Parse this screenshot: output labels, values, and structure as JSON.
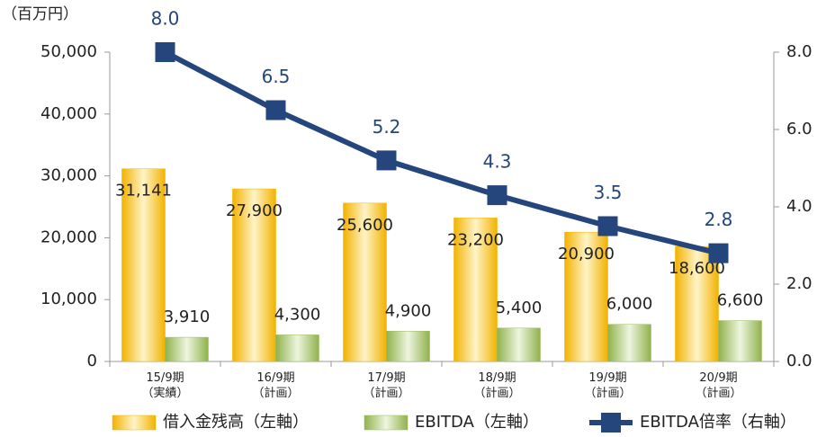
{
  "chart_data": {
    "type": "bar",
    "y_label": "（百万円）",
    "categories": [
      [
        "15/9期",
        "（実績）"
      ],
      [
        "16/9期",
        "（計画）"
      ],
      [
        "17/9期",
        "（計画）"
      ],
      [
        "18/9期",
        "（計画）"
      ],
      [
        "19/9期",
        "（計画）"
      ],
      [
        "20/9期",
        "（計画）"
      ]
    ],
    "series": [
      {
        "name": "借入金残高（左軸）",
        "type": "bar",
        "color": "#f2b200",
        "values": [
          31141,
          27900,
          25600,
          23200,
          20900,
          18600
        ],
        "value_labels": [
          "31,141",
          "27,900",
          "25,600",
          "23,200",
          "20,900",
          "18,600"
        ]
      },
      {
        "name": "EBITDA（左軸）",
        "type": "bar",
        "color": "#9bbb59",
        "values": [
          3910,
          4300,
          4900,
          5400,
          6000,
          6600
        ],
        "value_labels": [
          "3,910",
          "4,300",
          "4,900",
          "5,400",
          "6,000",
          "6,600"
        ]
      },
      {
        "name": "EBITDA倍率（右軸）",
        "type": "line",
        "axis": "y2",
        "color": "#24467c",
        "values": [
          8.0,
          6.5,
          5.2,
          4.3,
          3.5,
          2.8
        ],
        "value_labels": [
          "8.0",
          "6.5",
          "5.2",
          "4.3",
          "3.5",
          "2.8"
        ]
      }
    ],
    "ylim": [
      0,
      50000
    ],
    "yticks": [
      0,
      {
        "value": 10000,
        "label": "10,000"
      },
      {
        "value": 20000,
        "label": "20,000"
      },
      {
        "value": 30000,
        "label": "30,000"
      },
      {
        "value": 40000,
        "label": "40,000"
      },
      {
        "value": 50000,
        "label": "50,000"
      }
    ],
    "y2lim": [
      0,
      8
    ],
    "y2ticks": [
      {
        "value": 0,
        "label": "0.0"
      },
      {
        "value": 2,
        "label": "2.0"
      },
      {
        "value": 4,
        "label": "4.0"
      },
      {
        "value": 6,
        "label": "6.0"
      },
      {
        "value": 8,
        "label": "8.0"
      }
    ],
    "legend": "bottom"
  }
}
